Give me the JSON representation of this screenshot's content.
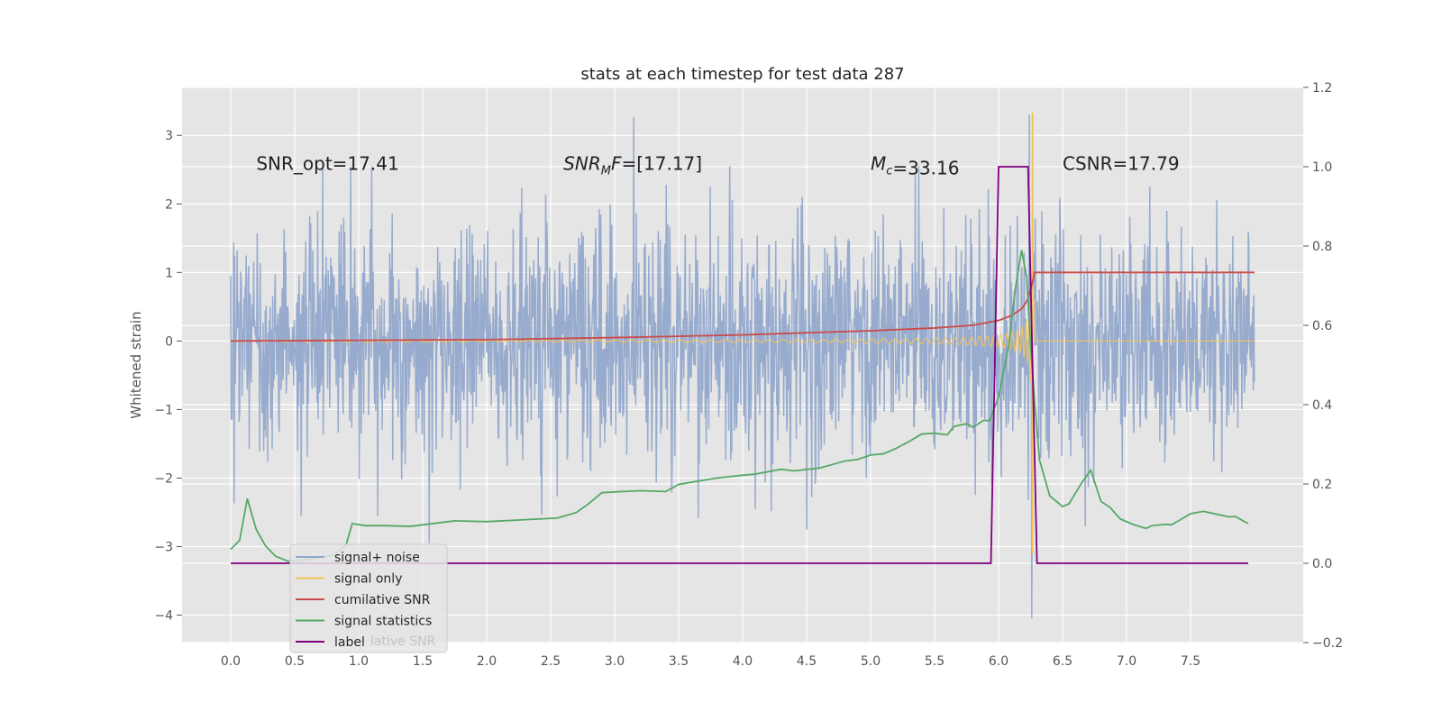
{
  "chart_data": {
    "type": "line",
    "title": "stats at each timestep for test data 287",
    "xlabel": "",
    "ylabel": "Whitened strain",
    "xlim": [
      -0.38,
      8.38
    ],
    "ylim": [
      -4.4,
      3.7
    ],
    "y2lim": [
      -0.2,
      1.2
    ],
    "x_ticks": [
      0.0,
      0.5,
      1.0,
      1.5,
      2.0,
      2.5,
      3.0,
      3.5,
      4.0,
      4.5,
      5.0,
      5.5,
      6.0,
      6.5,
      7.0,
      7.5
    ],
    "x_tick_labels": [
      "0.0",
      "0.5",
      "1.0",
      "1.5",
      "2.0",
      "2.5",
      "3.0",
      "3.5",
      "4.0",
      "4.5",
      "5.0",
      "5.5",
      "6.0",
      "6.5",
      "7.0",
      "7.5"
    ],
    "y_ticks": [
      -4,
      -3,
      -2,
      -1,
      0,
      1,
      2,
      3
    ],
    "y_tick_labels": [
      "−4",
      "−3",
      "−2",
      "−1",
      "0",
      "1",
      "2",
      "3"
    ],
    "y2_ticks": [
      -0.2,
      0.0,
      0.2,
      0.4,
      0.6,
      0.8,
      1.0,
      1.2
    ],
    "y2_tick_labels": [
      "−0.2",
      "0.0",
      "0.2",
      "0.4",
      "0.6",
      "0.8",
      "1.0",
      "1.2"
    ],
    "annotations": [
      {
        "id": "snr-opt",
        "text": "SNR_opt=17.41",
        "x": 0.2,
        "y": 2.6
      },
      {
        "id": "snr-mf",
        "text": "=[17.17]",
        "math_base": "SNR",
        "math_sub": "M",
        "math_tail": "F",
        "x": 2.6,
        "y": 2.6
      },
      {
        "id": "mc",
        "text": "=33.16",
        "math_base": "M",
        "math_sub": "c",
        "x": 5.0,
        "y": 2.6
      },
      {
        "id": "csnr",
        "text": "CSNR=17.79",
        "x": 6.5,
        "y": 2.6
      }
    ],
    "legend": {
      "position": "lower-left",
      "entries": [
        {
          "label": "signal+ noise",
          "color": "#92a8cc"
        },
        {
          "label": "signal only",
          "color": "#f3c35a"
        },
        {
          "label": "cumilative SNR",
          "color": "#cb4b4b"
        },
        {
          "label": "signal statistics",
          "color": "#55a868"
        },
        {
          "label": "label",
          "color": "#800080"
        }
      ],
      "ghost_text": "lative SNR"
    },
    "series": [
      {
        "name": "signal+ noise",
        "axis": "left",
        "color": "#92a8cc",
        "kind": "noise",
        "x_range": [
          0.0,
          7.998
        ],
        "points": 2048,
        "sigma": 0.85,
        "extremes": [
          [
            0.72,
            2.55
          ],
          [
            1.1,
            2.55
          ],
          [
            3.15,
            3.27
          ],
          [
            3.9,
            2.55
          ],
          [
            5.35,
            2.45
          ],
          [
            1.55,
            -2.95
          ],
          [
            4.5,
            -2.75
          ],
          [
            6.26,
            -4.05
          ],
          [
            4.1,
            -2.45
          ],
          [
            6.24,
            3.3
          ],
          [
            0.55,
            -2.55
          ],
          [
            1.15,
            -2.55
          ]
        ]
      },
      {
        "name": "signal only",
        "axis": "left",
        "color": "#f3c35a",
        "kind": "chirp",
        "x_range": [
          0.0,
          7.998
        ],
        "merger_x": 6.265,
        "peak": 3.33,
        "trough": -3.1
      },
      {
        "name": "cumilative SNR",
        "axis": "left",
        "color": "#cb4b4b",
        "x": [
          0.0,
          1.0,
          2.0,
          3.0,
          4.0,
          4.5,
          5.0,
          5.5,
          5.8,
          6.0,
          6.1,
          6.18,
          6.22,
          6.25,
          6.27,
          6.28,
          7.0,
          8.0
        ],
        "values": [
          0.0,
          0.01,
          0.02,
          0.05,
          0.09,
          0.12,
          0.15,
          0.19,
          0.23,
          0.3,
          0.37,
          0.47,
          0.58,
          0.75,
          0.9,
          1.0,
          1.0,
          1.0
        ]
      },
      {
        "name": "signal statistics",
        "axis": "right",
        "color": "#55a868",
        "x": [
          0.0,
          0.07,
          0.13,
          0.2,
          0.27,
          0.35,
          0.45,
          0.6,
          0.8,
          0.9,
          0.95,
          1.05,
          1.2,
          1.4,
          1.55,
          1.75,
          2.0,
          2.3,
          2.55,
          2.7,
          2.8,
          2.9,
          3.0,
          3.2,
          3.4,
          3.5,
          3.8,
          4.0,
          4.1,
          4.3,
          4.4,
          4.6,
          4.7,
          4.8,
          4.9,
          5.0,
          5.1,
          5.2,
          5.3,
          5.4,
          5.5,
          5.6,
          5.65,
          5.75,
          5.8,
          5.88,
          5.93,
          6.0,
          6.08,
          6.13,
          6.18,
          6.22,
          6.25,
          6.28,
          6.32,
          6.4,
          6.5,
          6.55,
          6.65,
          6.72,
          6.8,
          6.87,
          6.95,
          7.05,
          7.15,
          7.2,
          7.3,
          7.35,
          7.4,
          7.5,
          7.6,
          7.7,
          7.8,
          7.85,
          7.95
        ],
        "values": [
          0.035,
          0.058,
          0.163,
          0.085,
          0.045,
          0.018,
          0.005,
          0.01,
          0.02,
          0.045,
          0.1,
          0.095,
          0.095,
          0.093,
          0.099,
          0.107,
          0.105,
          0.11,
          0.114,
          0.128,
          0.151,
          0.178,
          0.18,
          0.183,
          0.181,
          0.199,
          0.215,
          0.222,
          0.225,
          0.237,
          0.233,
          0.24,
          0.249,
          0.258,
          0.262,
          0.273,
          0.276,
          0.29,
          0.307,
          0.326,
          0.328,
          0.324,
          0.345,
          0.352,
          0.343,
          0.36,
          0.36,
          0.42,
          0.55,
          0.69,
          0.79,
          0.72,
          0.55,
          0.41,
          0.26,
          0.17,
          0.143,
          0.15,
          0.203,
          0.235,
          0.156,
          0.141,
          0.112,
          0.098,
          0.088,
          0.095,
          0.098,
          0.097,
          0.106,
          0.125,
          0.131,
          0.124,
          0.117,
          0.118,
          0.1
        ]
      },
      {
        "name": "label",
        "axis": "right",
        "color": "#800080",
        "x": [
          0.0,
          5.94,
          6.0,
          6.23,
          6.3,
          7.95
        ],
        "values": [
          0.0,
          0.0,
          1.0,
          1.0,
          0.0,
          0.0
        ]
      }
    ]
  }
}
